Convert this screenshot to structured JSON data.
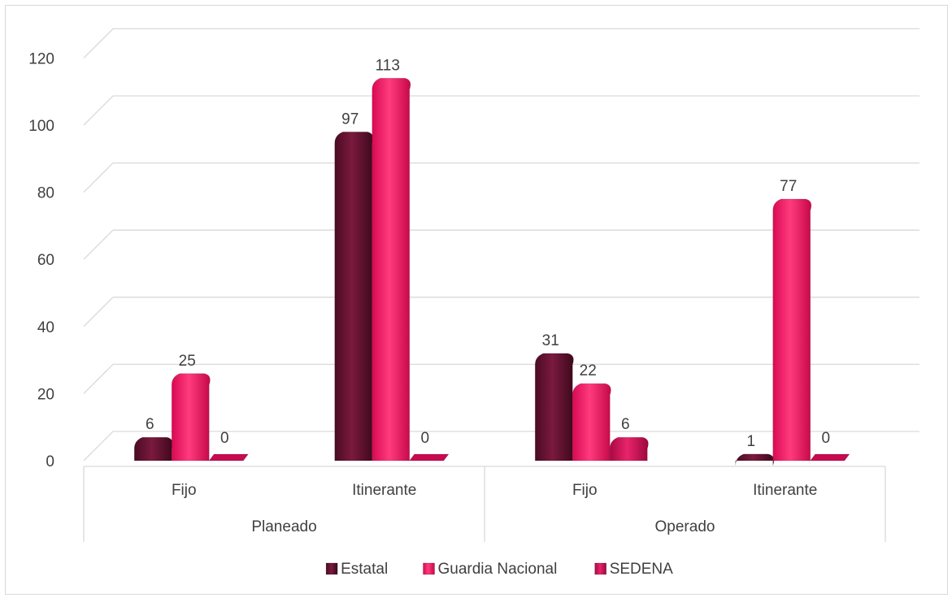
{
  "chart_data": {
    "type": "bar",
    "groups": [
      {
        "label": "Planeado",
        "categories": [
          "Fijo",
          "Itinerante"
        ]
      },
      {
        "label": "Operado",
        "categories": [
          "Fijo",
          "Itinerante"
        ]
      }
    ],
    "series": [
      {
        "name": "Estatal",
        "values": [
          6,
          97,
          31,
          1
        ],
        "color": "#6b1232"
      },
      {
        "name": "Guardia Nacional",
        "values": [
          25,
          113,
          22,
          77
        ],
        "color": "#f0105e"
      },
      {
        "name": "SEDENA",
        "values": [
          0,
          0,
          6,
          0
        ],
        "color": "#c80b50"
      }
    ],
    "data_labels": [
      [
        "6",
        "97",
        "31",
        "1"
      ],
      [
        "25",
        "113",
        "22",
        "77"
      ],
      [
        "0",
        "0",
        "6",
        "0"
      ]
    ],
    "y_ticks": [
      "0",
      "20",
      "40",
      "60",
      "80",
      "100",
      "120"
    ],
    "ylim": [
      0,
      120
    ],
    "grid": true,
    "legend": "bottom",
    "title": "",
    "xlabel": "",
    "ylabel": ""
  }
}
